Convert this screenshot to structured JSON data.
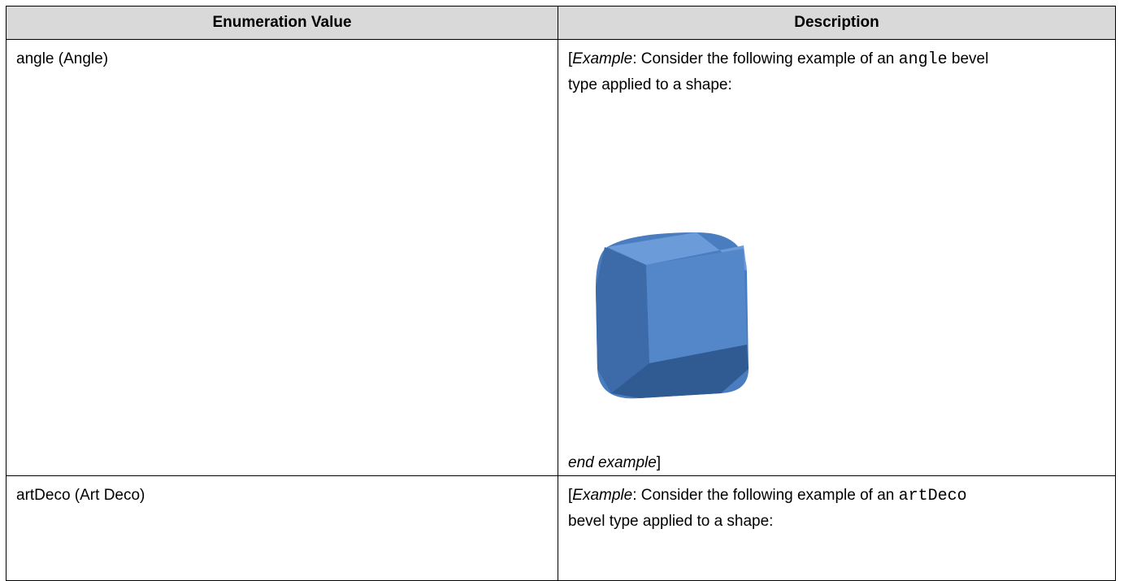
{
  "table": {
    "header": [
      "Enumeration Value",
      "Description"
    ],
    "rows": [
      {
        "value": "angle (Angle)",
        "description": {
          "open": "[",
          "example": "Example",
          "lead": ":  Consider the following example of an",
          "code": "angle",
          "rest": "bevel type applied to a shape:",
          "end": "end example",
          "close": "]"
        }
      },
      {
        "value": "artDeco (Art Deco)",
        "description": {
          "open": "[",
          "example": "Example",
          "lead": ":  Consider the following example of an",
          "code": "artDeco",
          "rest": "bevel type applied to a shape:"
        }
      }
    ]
  }
}
